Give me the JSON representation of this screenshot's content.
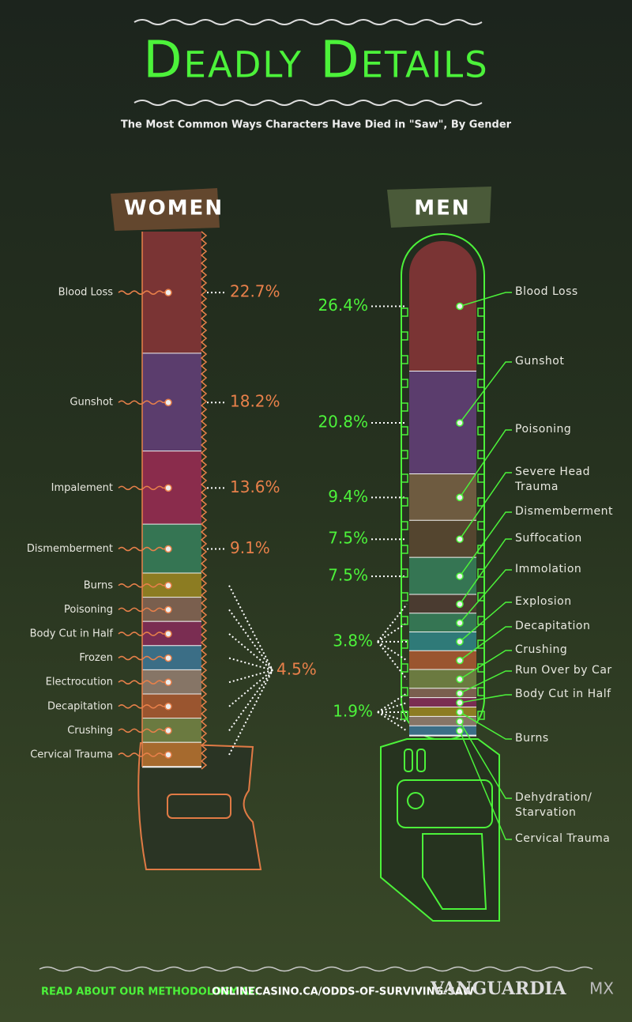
{
  "title": "Deadly Details",
  "subtitle": "The Most Common Ways Characters Have Died in \"Saw\", By Gender",
  "chart_data": [
    {
      "type": "stacked-bar",
      "title": "WOMEN",
      "categories": [
        "Blood Loss",
        "Gunshot",
        "Impalement",
        "Dismemberment",
        "Burns",
        "Poisoning",
        "Body Cut in Half",
        "Frozen",
        "Electrocution",
        "Decapitation",
        "Crushing",
        "Cervical Trauma"
      ],
      "values": [
        22.7,
        18.2,
        13.6,
        9.1,
        4.5,
        4.5,
        4.5,
        4.5,
        4.5,
        4.5,
        4.5,
        4.5
      ],
      "value_labels": [
        "22.7%",
        "18.2%",
        "13.6%",
        "9.1%",
        "4.5%",
        null,
        null,
        null,
        null,
        null,
        null,
        null
      ],
      "colors": [
        "#7a3434",
        "#5b3d6d",
        "#8a2c4c",
        "#357553",
        "#8c7c22",
        "#7a5f4e",
        "#7a2d52",
        "#3b6e86",
        "#867566",
        "#9a552f",
        "#6b7a40",
        "#a66a2e"
      ]
    },
    {
      "type": "stacked-bar",
      "title": "MEN",
      "categories": [
        "Blood Loss",
        "Gunshot",
        "Poisoning",
        "Severe Head Trauma",
        "Dismemberment",
        "Suffocation",
        "Immolation",
        "Explosion",
        "Decapitation",
        "Crushing",
        "Run Over by Car",
        "Body Cut in Half",
        "Burns",
        "Dehydration/ Starvation",
        "Cervical Trauma"
      ],
      "values": [
        26.4,
        20.8,
        9.4,
        7.5,
        7.5,
        3.8,
        3.8,
        3.8,
        3.8,
        3.8,
        1.9,
        1.9,
        1.9,
        1.9,
        1.9
      ],
      "value_labels": [
        "26.4%",
        "20.8%",
        "9.4%",
        "7.5%",
        "7.5%",
        "3.8%",
        null,
        null,
        null,
        null,
        "1.9%",
        null,
        null,
        null,
        null
      ],
      "colors": [
        "#7a3434",
        "#5b3d6d",
        "#6e5b40",
        "#54452f",
        "#357553",
        "#4a3b30",
        "#357553",
        "#2f7a78",
        "#9a552f",
        "#6b7a40",
        "#7a5f4e",
        "#7a2d52",
        "#8c7c22",
        "#867566",
        "#3b6e86"
      ]
    }
  ],
  "footer": {
    "text": "READ ABOUT OUR METHODOLOGY AT:",
    "link": "ONLINECASINO.CA/ODDS-OF-SURVIVING-SAW",
    "brand": "VANGUARDIA",
    "brand_suffix": "MX"
  }
}
